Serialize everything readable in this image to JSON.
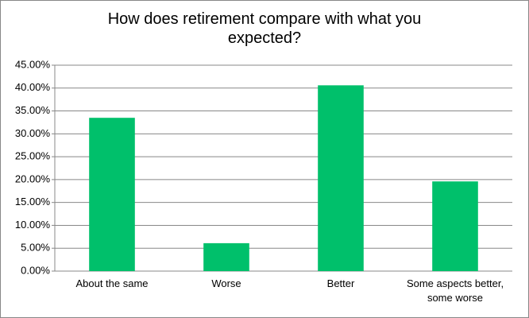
{
  "chart_data": {
    "type": "bar",
    "title": "How does retirement compare with what you expected?",
    "categories": [
      "About the same",
      "Worse",
      "Better",
      "Some aspects better, some worse"
    ],
    "values": [
      33.5,
      6.1,
      40.6,
      19.6
    ],
    "color": "#00c06b",
    "ylim": [
      0,
      45
    ],
    "yticks": [
      {
        "value": 0,
        "label": "0.00%"
      },
      {
        "value": 5,
        "label": "5.00%"
      },
      {
        "value": 10,
        "label": "10.00%"
      },
      {
        "value": 15,
        "label": "15.00%"
      },
      {
        "value": 20,
        "label": "20.00%"
      },
      {
        "value": 25,
        "label": "25.00%"
      },
      {
        "value": 30,
        "label": "30.00%"
      },
      {
        "value": 35,
        "label": "35.00%"
      },
      {
        "value": 40,
        "label": "40.00%"
      },
      {
        "value": 45,
        "label": "45.00%"
      }
    ],
    "grid": true
  }
}
